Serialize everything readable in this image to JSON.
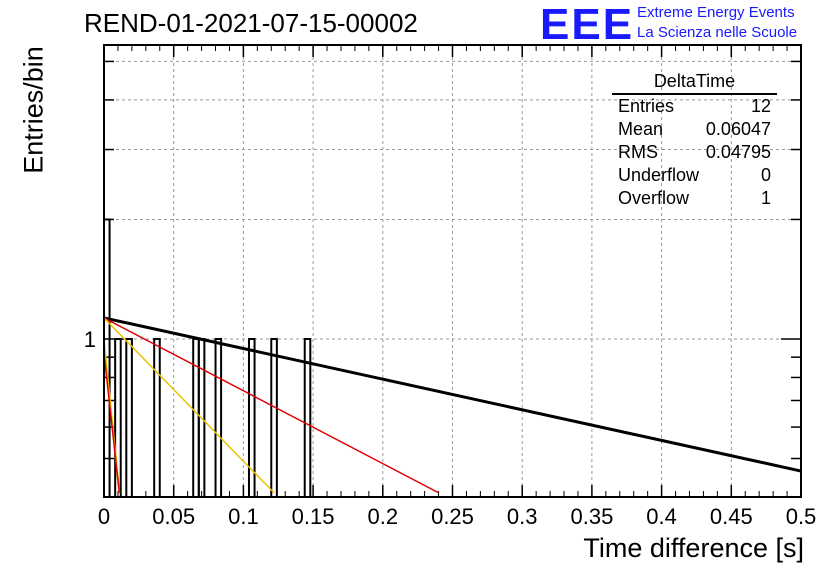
{
  "title": "REND-01-2021-07-15-00002",
  "logo": {
    "text": "EEE",
    "line1": "Extreme Energy Events",
    "line2": "La Scienza nelle Scuole",
    "color": "#1a1aff"
  },
  "stats": {
    "title": "DeltaTime",
    "rows": [
      {
        "label": "Entries",
        "value": "12"
      },
      {
        "label": "Mean",
        "value": "0.06047"
      },
      {
        "label": "RMS",
        "value": "0.04795"
      },
      {
        "label": "Underflow",
        "value": "0"
      },
      {
        "label": "Overflow",
        "value": "1"
      }
    ]
  },
  "chart_data": {
    "type": "bar",
    "title": "REND-01-2021-07-15-00002",
    "xlabel": "Time difference [s]",
    "ylabel": "Entries/bin",
    "xlim": [
      0,
      0.5
    ],
    "ylim": [
      0.4,
      5.5
    ],
    "log_y": true,
    "grid": true,
    "x_ticks": [
      "0",
      "0.05",
      "0.1",
      "0.15",
      "0.2",
      "0.25",
      "0.3",
      "0.35",
      "0.4",
      "0.45",
      "0.5"
    ],
    "y_tick_labels": [
      "1"
    ],
    "bin_width": 0.004,
    "bins": [
      {
        "x": 0.0,
        "count": 2
      },
      {
        "x": 0.008,
        "count": 1
      },
      {
        "x": 0.016,
        "count": 1
      },
      {
        "x": 0.036,
        "count": 1
      },
      {
        "x": 0.064,
        "count": 1
      },
      {
        "x": 0.068,
        "count": 1
      },
      {
        "x": 0.08,
        "count": 1
      },
      {
        "x": 0.104,
        "count": 1
      },
      {
        "x": 0.12,
        "count": 1
      },
      {
        "x": 0.144,
        "count": 1
      }
    ],
    "fit_lines": [
      {
        "color": "#000000",
        "width": 3,
        "points": [
          [
            0.0,
            1.13
          ],
          [
            0.5,
            0.465
          ]
        ]
      },
      {
        "color": "#e00000",
        "width": 1.5,
        "points": [
          [
            0.0,
            1.13
          ],
          [
            0.24,
            0.41
          ]
        ]
      },
      {
        "color": "#f0c000",
        "width": 1.5,
        "points": [
          [
            0.0,
            1.13
          ],
          [
            0.122,
            0.41
          ]
        ]
      },
      {
        "color": "#f0c000",
        "width": 2,
        "points": [
          [
            0.0,
            0.98
          ],
          [
            0.011,
            0.41
          ]
        ]
      },
      {
        "color": "#e00000",
        "width": 1.5,
        "points": [
          [
            0.0,
            0.92
          ],
          [
            0.011,
            0.41
          ]
        ]
      }
    ]
  }
}
